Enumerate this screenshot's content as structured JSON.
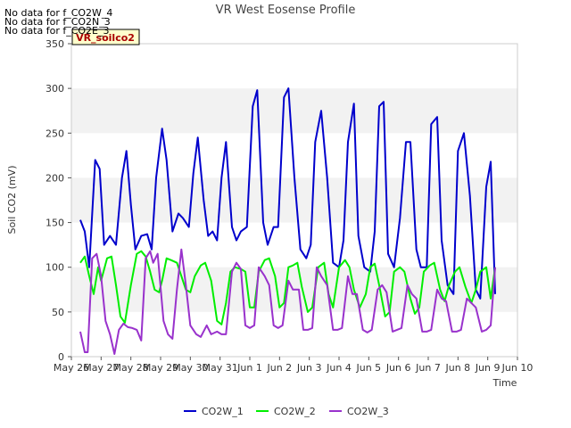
{
  "chart_data": {
    "type": "line",
    "title": "VR West Eosense Profile",
    "xlabel": "Time",
    "ylabel": "Soil CO2 (mV)",
    "xlim": [
      0,
      15
    ],
    "ylim": [
      0,
      350
    ],
    "yticks": [
      0,
      50,
      100,
      150,
      200,
      250,
      300,
      350
    ],
    "x_tick_labels": [
      "May 26",
      "May 27",
      "May 28",
      "May 29",
      "May 30",
      "May 31",
      "Jun 1",
      "Jun 2",
      "Jun 3",
      "Jun 4",
      "Jun 5",
      "Jun 6",
      "Jun 7",
      "Jun 8",
      "Jun 9",
      "Jun 10"
    ],
    "grid": "alternating horizontal bands",
    "legend_position": "bottom-center",
    "badge_label": "VR_soilco2",
    "no_data_messages": [
      "No data for f_CO2W_4",
      "No data for f_CO2N_3",
      "No data for f_CO2E_3"
    ],
    "series": [
      {
        "name": "CO2W_1",
        "color": "#0000cc",
        "x": [
          0.3,
          0.45,
          0.6,
          0.8,
          0.95,
          1.1,
          1.3,
          1.5,
          1.7,
          1.85,
          2.0,
          2.15,
          2.35,
          2.55,
          2.7,
          2.85,
          3.05,
          3.2,
          3.4,
          3.6,
          3.75,
          3.95,
          4.1,
          4.25,
          4.45,
          4.6,
          4.75,
          4.9,
          5.05,
          5.2,
          5.4,
          5.55,
          5.7,
          5.9,
          6.1,
          6.25,
          6.45,
          6.6,
          6.8,
          6.95,
          7.15,
          7.3,
          7.5,
          7.7,
          7.9,
          8.05,
          8.2,
          8.4,
          8.6,
          8.8,
          9.0,
          9.15,
          9.3,
          9.5,
          9.65,
          9.85,
          10.05,
          10.2,
          10.35,
          10.5,
          10.65,
          10.85,
          11.05,
          11.25,
          11.4,
          11.6,
          11.75,
          11.95,
          12.1,
          12.3,
          12.45,
          12.65,
          12.85,
          13.0,
          13.2,
          13.4,
          13.6,
          13.75,
          13.95,
          14.1,
          14.25
        ],
        "y": [
          153,
          140,
          100,
          220,
          210,
          125,
          135,
          125,
          200,
          230,
          170,
          120,
          135,
          137,
          120,
          200,
          255,
          220,
          140,
          160,
          155,
          145,
          205,
          245,
          175,
          135,
          140,
          130,
          200,
          240,
          145,
          130,
          140,
          145,
          280,
          298,
          150,
          125,
          145,
          145,
          290,
          300,
          200,
          120,
          110,
          125,
          240,
          275,
          200,
          105,
          100,
          130,
          240,
          283,
          135,
          100,
          95,
          140,
          280,
          285,
          115,
          100,
          155,
          240,
          240,
          120,
          100,
          100,
          260,
          268,
          130,
          80,
          70,
          230,
          250,
          180,
          75,
          65,
          190,
          218,
          70
        ],
        "stroke_width": 2
      },
      {
        "name": "CO2W_2",
        "color": "#00ee00",
        "x": [
          0.3,
          0.45,
          0.6,
          0.75,
          0.9,
          1.0,
          1.2,
          1.35,
          1.5,
          1.65,
          1.8,
          2.0,
          2.2,
          2.35,
          2.5,
          2.65,
          2.8,
          2.95,
          3.05,
          3.2,
          3.35,
          3.55,
          3.7,
          3.85,
          4.0,
          4.15,
          4.35,
          4.5,
          4.7,
          4.9,
          5.05,
          5.2,
          5.35,
          5.5,
          5.7,
          5.85,
          6.0,
          6.15,
          6.3,
          6.5,
          6.65,
          6.85,
          7.0,
          7.15,
          7.3,
          7.45,
          7.6,
          7.75,
          7.95,
          8.1,
          8.3,
          8.5,
          8.65,
          8.8,
          9.0,
          9.2,
          9.35,
          9.5,
          9.7,
          9.9,
          10.05,
          10.2,
          10.35,
          10.55,
          10.7,
          10.85,
          11.05,
          11.2,
          11.4,
          11.55,
          11.7,
          11.85,
          12.05,
          12.2,
          12.4,
          12.55,
          12.7,
          12.9,
          13.05,
          13.25,
          13.45,
          13.6,
          13.75,
          13.95,
          14.1,
          14.25
        ],
        "y": [
          105,
          112,
          90,
          70,
          100,
          85,
          110,
          112,
          80,
          45,
          38,
          80,
          115,
          118,
          112,
          95,
          75,
          72,
          85,
          110,
          108,
          105,
          90,
          75,
          72,
          90,
          102,
          105,
          85,
          40,
          36,
          60,
          95,
          100,
          98,
          95,
          55,
          55,
          95,
          108,
          110,
          90,
          55,
          60,
          100,
          102,
          105,
          78,
          50,
          55,
          100,
          105,
          70,
          55,
          100,
          108,
          100,
          75,
          55,
          70,
          100,
          104,
          80,
          45,
          50,
          95,
          100,
          95,
          65,
          48,
          55,
          95,
          102,
          105,
          75,
          62,
          80,
          95,
          100,
          78,
          60,
          75,
          95,
          100,
          65,
          100
        ],
        "stroke_width": 2
      },
      {
        "name": "CO2W_3",
        "color": "#9932cc",
        "x": [
          0.3,
          0.45,
          0.55,
          0.7,
          0.85,
          1.0,
          1.15,
          1.3,
          1.45,
          1.6,
          1.75,
          1.9,
          2.05,
          2.2,
          2.35,
          2.5,
          2.65,
          2.75,
          2.9,
          3.1,
          3.25,
          3.4,
          3.55,
          3.7,
          3.85,
          4.0,
          4.2,
          4.35,
          4.55,
          4.7,
          4.9,
          5.05,
          5.2,
          5.4,
          5.55,
          5.7,
          5.85,
          6.0,
          6.15,
          6.3,
          6.5,
          6.65,
          6.8,
          6.95,
          7.1,
          7.3,
          7.45,
          7.65,
          7.8,
          7.95,
          8.1,
          8.25,
          8.4,
          8.6,
          8.8,
          8.95,
          9.1,
          9.3,
          9.45,
          9.6,
          9.8,
          9.95,
          10.1,
          10.3,
          10.45,
          10.6,
          10.8,
          10.95,
          11.1,
          11.3,
          11.45,
          11.6,
          11.8,
          11.95,
          12.1,
          12.3,
          12.45,
          12.6,
          12.8,
          12.95,
          13.1,
          13.3,
          13.45,
          13.6,
          13.8,
          13.95,
          14.1,
          14.25
        ],
        "y": [
          28,
          5,
          5,
          110,
          115,
          90,
          40,
          25,
          3,
          30,
          37,
          33,
          32,
          30,
          18,
          110,
          118,
          105,
          115,
          40,
          25,
          20,
          75,
          120,
          80,
          35,
          25,
          22,
          35,
          25,
          28,
          25,
          25,
          95,
          105,
          98,
          35,
          32,
          35,
          100,
          90,
          80,
          35,
          32,
          35,
          85,
          75,
          75,
          30,
          30,
          32,
          100,
          90,
          80,
          30,
          30,
          32,
          90,
          70,
          70,
          30,
          27,
          30,
          75,
          80,
          72,
          28,
          30,
          32,
          80,
          70,
          65,
          28,
          28,
          30,
          75,
          65,
          62,
          28,
          28,
          30,
          65,
          60,
          55,
          28,
          30,
          35,
          100
        ],
        "stroke_width": 2
      }
    ]
  }
}
